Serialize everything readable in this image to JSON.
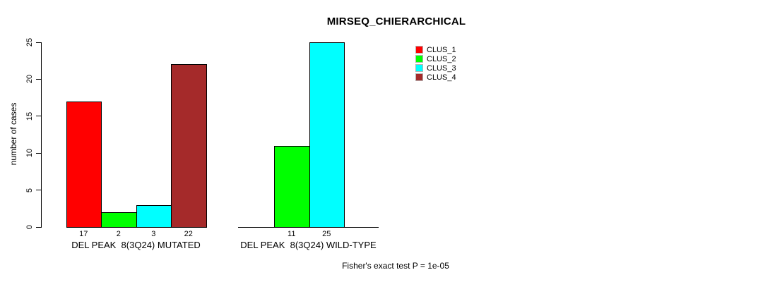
{
  "chart_data": {
    "type": "bar",
    "title": "MIRSEQ_CHIERARCHICAL",
    "ylabel": "number of cases",
    "xlabel": "",
    "ylim": [
      0,
      25
    ],
    "yticks": [
      0,
      5,
      10,
      15,
      20,
      25
    ],
    "grid": false,
    "legend_position": "top-right",
    "legend": [
      {
        "label": "CLUS_1",
        "color": "#FF0000"
      },
      {
        "label": "CLUS_2",
        "color": "#00FF00"
      },
      {
        "label": "CLUS_3",
        "color": "#00FFFF"
      },
      {
        "label": "CLUS_4",
        "color": "#A52A2A"
      }
    ],
    "groups": [
      {
        "label": "DEL PEAK  8(3Q24) MUTATED",
        "bars": [
          {
            "cluster": "CLUS_1",
            "value": 17,
            "color": "#FF0000"
          },
          {
            "cluster": "CLUS_2",
            "value": 2,
            "color": "#00FF00"
          },
          {
            "cluster": "CLUS_3",
            "value": 3,
            "color": "#00FFFF"
          },
          {
            "cluster": "CLUS_4",
            "value": 22,
            "color": "#A52A2A"
          }
        ]
      },
      {
        "label": "DEL PEAK  8(3Q24) WILD-TYPE",
        "bars": [
          {
            "cluster": "CLUS_2",
            "value": 11,
            "color": "#00FF00"
          },
          {
            "cluster": "CLUS_3",
            "value": 25,
            "color": "#00FFFF"
          }
        ]
      }
    ],
    "annotation": "Fisher's exact test P = 1e-05"
  }
}
